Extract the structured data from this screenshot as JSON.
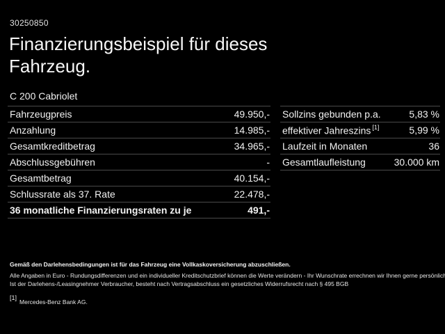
{
  "page": {
    "id_number": "30250850",
    "title": "Finanzierungsbeispiel für dieses Fahrzeug.",
    "model": "C 200 Cabriolet"
  },
  "colors": {
    "background": "#000000",
    "text": "#f2f2f2",
    "separator": "#4a4a4a"
  },
  "finance_table": {
    "rows": [
      {
        "label": "Fahrzeugpreis",
        "value": "49.950,-"
      },
      {
        "label": "Anzahlung",
        "value": "14.985,-"
      },
      {
        "label": "Gesamtkreditbetrag",
        "value": "34.965,-"
      },
      {
        "label": "Abschlussgebühren",
        "value": "-"
      },
      {
        "label": "Gesamtbetrag",
        "value": "40.154,-"
      },
      {
        "label": "Schlussrate als 37. Rate",
        "value": "22.478,-"
      },
      {
        "label": "36 monatliche Finanzierungsraten zu je",
        "value": "491,-"
      }
    ]
  },
  "conditions_table": {
    "rows": [
      {
        "label": "Sollzins gebunden p.a.",
        "sup": "",
        "value": "5,83 %"
      },
      {
        "label": "effektiver Jahreszins",
        "sup": "[1]",
        "value": "5,99 %"
      },
      {
        "label": "Laufzeit in Monaten",
        "sup": "",
        "value": "36"
      },
      {
        "label": "Gesamtlaufleistung",
        "sup": "",
        "value": "30.000 km"
      }
    ]
  },
  "footer": {
    "bold_note": "Gemäß den Darlehensbedingungen ist für das Fahrzeug eine Vollkaskoversicherung abzuschließen.",
    "note_line1": "Alle Angaben in Euro - Rundungsdifferenzen und ein individueller Kreditschutzbrief können die Werte verändern - Ihr Wunschrate errechnen wir Ihnen gerne persönlich",
    "note_line2": "Ist der Darlehens-/Leasingnehmer Verbraucher, besteht nach Vertragsabschluss ein gesetzliches Widerrufsrecht nach § 495 BGB",
    "footnote_marker": "[1]",
    "footnote_text": "Mercedes-Benz Bank AG."
  }
}
